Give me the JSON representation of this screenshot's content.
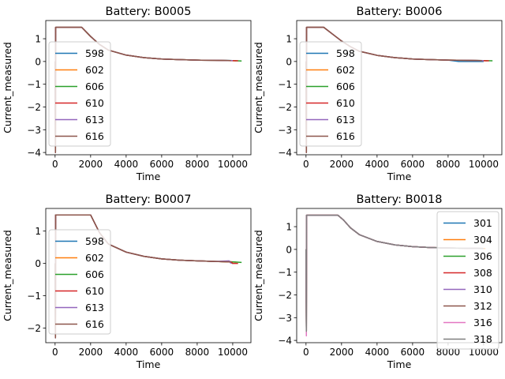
{
  "chart_data": [
    {
      "type": "line",
      "title": "Battery: B0005",
      "xlabel": "Time",
      "ylabel": "Current_measured",
      "xlim": [
        -525,
        11025
      ],
      "ylim": [
        -4.1,
        1.8
      ],
      "xticks": [
        0,
        2000,
        4000,
        6000,
        8000,
        10000
      ],
      "yticks": [
        -4,
        -3,
        -2,
        -1,
        0,
        1
      ],
      "legend": "center-left",
      "series": [
        {
          "name": "598",
          "color": "#1f77b4",
          "x": [
            0,
            20,
            30,
            1500,
            2000,
            2500,
            3000,
            4000,
            5000,
            6000,
            7000,
            8000,
            9000,
            10000
          ],
          "y": [
            0,
            -4.0,
            1.5,
            1.5,
            1.1,
            0.75,
            0.5,
            0.28,
            0.17,
            0.11,
            0.08,
            0.06,
            0.05,
            0.04
          ]
        },
        {
          "name": "602",
          "color": "#ff7f0e",
          "x": [
            0,
            20,
            30,
            1500,
            2000,
            2500,
            3000,
            4000,
            5000,
            6000,
            7000,
            8000,
            9000,
            10200
          ],
          "y": [
            0,
            -4.0,
            1.5,
            1.5,
            1.1,
            0.75,
            0.5,
            0.28,
            0.17,
            0.11,
            0.08,
            0.06,
            0.05,
            0.03
          ]
        },
        {
          "name": "606",
          "color": "#2ca02c",
          "x": [
            0,
            20,
            30,
            1500,
            2000,
            2500,
            3000,
            4000,
            5000,
            6000,
            7000,
            8000,
            9000,
            10000,
            10500
          ],
          "y": [
            0,
            -4.0,
            1.5,
            1.5,
            1.1,
            0.75,
            0.5,
            0.28,
            0.17,
            0.11,
            0.08,
            0.06,
            0.05,
            0.04,
            0.02
          ]
        },
        {
          "name": "610",
          "color": "#d62728",
          "x": [
            0,
            20,
            30,
            1500,
            2000,
            2500,
            3000,
            4000,
            5000,
            6000,
            7000,
            8000,
            9000,
            10300
          ],
          "y": [
            0,
            -4.0,
            1.5,
            1.5,
            1.1,
            0.75,
            0.5,
            0.28,
            0.17,
            0.11,
            0.08,
            0.06,
            0.05,
            0.03
          ]
        },
        {
          "name": "613",
          "color": "#9467bd",
          "x": [
            0,
            20,
            30,
            1500,
            2000,
            2500,
            3000,
            4000,
            5000,
            6000,
            7000,
            8000,
            9000,
            10000
          ],
          "y": [
            0,
            -4.0,
            1.5,
            1.5,
            1.1,
            0.75,
            0.5,
            0.28,
            0.17,
            0.11,
            0.08,
            0.06,
            0.05,
            0.04
          ]
        },
        {
          "name": "616",
          "color": "#8c564b",
          "x": [
            0,
            20,
            30,
            1500,
            2000,
            2500,
            3000,
            4000,
            5000,
            6000,
            7000,
            8000,
            9000,
            9900
          ],
          "y": [
            0,
            -4.0,
            1.5,
            1.5,
            1.1,
            0.75,
            0.5,
            0.28,
            0.17,
            0.11,
            0.08,
            0.06,
            0.05,
            0.04
          ]
        }
      ]
    },
    {
      "type": "line",
      "title": "Battery: B0006",
      "xlabel": "Time",
      "ylabel": "Current_measured",
      "xlim": [
        -525,
        11025
      ],
      "ylim": [
        -4.1,
        1.8
      ],
      "xticks": [
        0,
        2000,
        4000,
        6000,
        8000,
        10000
      ],
      "yticks": [
        -4,
        -3,
        -2,
        -1,
        0,
        1
      ],
      "legend": "center-left",
      "series": [
        {
          "name": "598",
          "color": "#1f77b4",
          "x": [
            0,
            20,
            30,
            1000,
            1500,
            2000,
            2500,
            3000,
            4000,
            5000,
            6000,
            7000,
            8000,
            8600,
            9000,
            10000
          ],
          "y": [
            0,
            -4.0,
            1.5,
            1.5,
            1.2,
            0.9,
            0.65,
            0.45,
            0.27,
            0.17,
            0.11,
            0.08,
            0.06,
            0.0,
            0.0,
            0.0
          ]
        },
        {
          "name": "602",
          "color": "#ff7f0e",
          "x": [
            0,
            20,
            30,
            1000,
            1500,
            2000,
            2500,
            3000,
            4000,
            5000,
            6000,
            7000,
            8000,
            9000,
            10200
          ],
          "y": [
            0,
            -4.0,
            1.5,
            1.5,
            1.2,
            0.9,
            0.65,
            0.45,
            0.27,
            0.17,
            0.11,
            0.08,
            0.06,
            0.05,
            0.03
          ]
        },
        {
          "name": "606",
          "color": "#2ca02c",
          "x": [
            0,
            20,
            30,
            1000,
            1500,
            2000,
            2500,
            3000,
            4000,
            5000,
            6000,
            7000,
            8000,
            9000,
            10000,
            10500
          ],
          "y": [
            0,
            -4.0,
            1.5,
            1.5,
            1.2,
            0.9,
            0.65,
            0.45,
            0.27,
            0.17,
            0.11,
            0.08,
            0.06,
            0.05,
            0.04,
            0.03
          ]
        },
        {
          "name": "610",
          "color": "#d62728",
          "x": [
            0,
            20,
            30,
            1000,
            1500,
            2000,
            2500,
            3000,
            4000,
            5000,
            6000,
            7000,
            8000,
            9000,
            10300
          ],
          "y": [
            0,
            -4.0,
            1.5,
            1.5,
            1.2,
            0.9,
            0.65,
            0.45,
            0.27,
            0.17,
            0.11,
            0.08,
            0.06,
            0.05,
            0.03
          ]
        },
        {
          "name": "613",
          "color": "#9467bd",
          "x": [
            0,
            20,
            30,
            1000,
            1500,
            2000,
            2500,
            3000,
            4000,
            5000,
            6000,
            7000,
            8000,
            9000,
            10000
          ],
          "y": [
            0,
            -4.0,
            1.5,
            1.5,
            1.2,
            0.9,
            0.65,
            0.45,
            0.27,
            0.17,
            0.11,
            0.08,
            0.06,
            0.05,
            0.04
          ]
        },
        {
          "name": "616",
          "color": "#8c564b",
          "x": [
            0,
            20,
            30,
            1000,
            1500,
            2000,
            2500,
            3000,
            4000,
            5000,
            6000,
            7000,
            8000,
            9000,
            9900
          ],
          "y": [
            0,
            -4.0,
            1.5,
            1.5,
            1.2,
            0.9,
            0.65,
            0.45,
            0.27,
            0.17,
            0.11,
            0.08,
            0.06,
            0.05,
            0.04
          ]
        }
      ]
    },
    {
      "type": "line",
      "title": "Battery: B0007",
      "xlabel": "Time",
      "ylabel": "Current_measured",
      "xlim": [
        -525,
        11025
      ],
      "ylim": [
        -2.45,
        1.7
      ],
      "xticks": [
        0,
        2000,
        4000,
        6000,
        8000,
        10000
      ],
      "yticks": [
        -2,
        -1,
        0,
        1
      ],
      "legend": "center-left",
      "series": [
        {
          "name": "598",
          "color": "#1f77b4",
          "x": [
            0,
            20,
            30,
            2000,
            2500,
            3000,
            4000,
            5000,
            6000,
            7000,
            8000,
            9000,
            9800,
            10000
          ],
          "y": [
            0,
            -2.3,
            1.5,
            1.5,
            0.95,
            0.6,
            0.35,
            0.22,
            0.14,
            0.1,
            0.08,
            0.06,
            0.05,
            0.0
          ]
        },
        {
          "name": "602",
          "color": "#ff7f0e",
          "x": [
            0,
            20,
            30,
            2000,
            2500,
            3000,
            4000,
            5000,
            6000,
            7000,
            8000,
            9000,
            10200
          ],
          "y": [
            0,
            -2.3,
            1.5,
            1.5,
            0.95,
            0.6,
            0.35,
            0.22,
            0.14,
            0.1,
            0.08,
            0.06,
            0.04
          ]
        },
        {
          "name": "606",
          "color": "#2ca02c",
          "x": [
            0,
            20,
            30,
            2000,
            2500,
            3000,
            4000,
            5000,
            6000,
            7000,
            8000,
            9000,
            10000,
            10500
          ],
          "y": [
            0,
            -2.3,
            1.5,
            1.5,
            0.95,
            0.6,
            0.35,
            0.22,
            0.14,
            0.1,
            0.08,
            0.06,
            0.05,
            0.03
          ]
        },
        {
          "name": "610",
          "color": "#d62728",
          "x": [
            0,
            20,
            30,
            2000,
            2500,
            3000,
            4000,
            5000,
            6000,
            7000,
            8000,
            9000,
            9900,
            10000,
            10300
          ],
          "y": [
            0,
            -2.3,
            1.5,
            1.5,
            0.95,
            0.6,
            0.35,
            0.22,
            0.14,
            0.1,
            0.08,
            0.06,
            0.05,
            0.0,
            0.0
          ]
        },
        {
          "name": "613",
          "color": "#9467bd",
          "x": [
            0,
            20,
            30,
            2000,
            2500,
            3000,
            4000,
            5000,
            6000,
            7000,
            8000,
            9000,
            9800,
            9900
          ],
          "y": [
            0,
            -2.3,
            1.5,
            1.5,
            0.95,
            0.6,
            0.35,
            0.22,
            0.14,
            0.1,
            0.08,
            0.06,
            0.08,
            0.0
          ]
        },
        {
          "name": "616",
          "color": "#8c564b",
          "x": [
            0,
            20,
            30,
            2000,
            2500,
            3000,
            4000,
            5000,
            6000,
            7000,
            8000,
            9000,
            9900
          ],
          "y": [
            0,
            -2.3,
            1.5,
            1.5,
            0.95,
            0.6,
            0.35,
            0.22,
            0.14,
            0.1,
            0.08,
            0.06,
            0.05
          ]
        }
      ]
    },
    {
      "type": "line",
      "title": "Battery: B0018",
      "xlabel": "Time",
      "ylabel": "Current_measured",
      "xlim": [
        -525,
        11025
      ],
      "ylim": [
        -4.1,
        1.8
      ],
      "xticks": [
        0,
        2000,
        4000,
        6000,
        8000,
        10000
      ],
      "yticks": [
        -4,
        -3,
        -2,
        -1,
        0,
        1
      ],
      "legend": "upper-right",
      "series": [
        {
          "name": "301",
          "color": "#1f77b4",
          "x": [
            0,
            20,
            30,
            1800,
            2100,
            2500,
            3000,
            4000,
            5000,
            6000,
            7000,
            8000,
            9000,
            10000
          ],
          "y": [
            0,
            -3.6,
            1.5,
            1.5,
            1.3,
            0.95,
            0.65,
            0.35,
            0.2,
            0.12,
            0.08,
            0.06,
            0.05,
            0.04
          ]
        },
        {
          "name": "304",
          "color": "#ff7f0e",
          "x": [
            0,
            20,
            30,
            1800,
            2100,
            2500,
            3000,
            4000,
            5000,
            6000,
            7000,
            8000,
            9000,
            10100
          ],
          "y": [
            0,
            -3.6,
            1.5,
            1.5,
            1.3,
            0.95,
            0.65,
            0.35,
            0.2,
            0.12,
            0.08,
            0.06,
            0.05,
            0.04
          ]
        },
        {
          "name": "306",
          "color": "#2ca02c",
          "x": [
            0,
            20,
            30,
            1800,
            2100,
            2500,
            3000,
            4000,
            5000,
            6000,
            7000,
            8000,
            9000,
            10000
          ],
          "y": [
            0,
            -3.6,
            1.5,
            1.5,
            1.3,
            0.95,
            0.65,
            0.35,
            0.2,
            0.12,
            0.08,
            0.06,
            0.05,
            0.04
          ]
        },
        {
          "name": "308",
          "color": "#d62728",
          "x": [
            0,
            20,
            30,
            1800,
            2100,
            2500,
            3000,
            4000,
            5000,
            6000,
            7000,
            8000,
            9000,
            10000
          ],
          "y": [
            0,
            -3.6,
            1.5,
            1.5,
            1.3,
            0.95,
            0.65,
            0.35,
            0.2,
            0.12,
            0.08,
            0.06,
            0.05,
            0.04
          ]
        },
        {
          "name": "310",
          "color": "#9467bd",
          "x": [
            0,
            20,
            30,
            1800,
            2100,
            2500,
            3000,
            4000,
            5000,
            6000,
            7000,
            8000,
            9000,
            10000
          ],
          "y": [
            0,
            -3.6,
            1.5,
            1.5,
            1.3,
            0.95,
            0.65,
            0.35,
            0.2,
            0.12,
            0.08,
            0.06,
            0.05,
            0.04
          ]
        },
        {
          "name": "312",
          "color": "#8c564b",
          "x": [
            0,
            20,
            30,
            1800,
            2100,
            2500,
            3000,
            4000,
            5000,
            6000,
            7000,
            8000,
            9000,
            10000
          ],
          "y": [
            0,
            -3.6,
            1.5,
            1.5,
            1.3,
            0.95,
            0.65,
            0.35,
            0.2,
            0.12,
            0.08,
            0.06,
            0.05,
            0.04
          ]
        },
        {
          "name": "316",
          "color": "#e377c2",
          "x": [
            0,
            20,
            30,
            1800,
            2100,
            2500,
            3000,
            4000,
            5000,
            6000,
            7000,
            8000,
            9000,
            10000
          ],
          "y": [
            0,
            -3.8,
            1.5,
            1.5,
            1.3,
            0.95,
            0.65,
            0.35,
            0.2,
            0.12,
            0.08,
            0.06,
            0.05,
            0.04
          ]
        },
        {
          "name": "318",
          "color": "#7f7f7f",
          "x": [
            0,
            20,
            30,
            1800,
            2100,
            2500,
            3000,
            4000,
            5000,
            6000,
            7000,
            8000,
            9000,
            10000
          ],
          "y": [
            0,
            -3.6,
            1.5,
            1.5,
            1.3,
            0.95,
            0.65,
            0.35,
            0.2,
            0.12,
            0.08,
            0.06,
            0.05,
            0.04
          ]
        }
      ]
    }
  ]
}
